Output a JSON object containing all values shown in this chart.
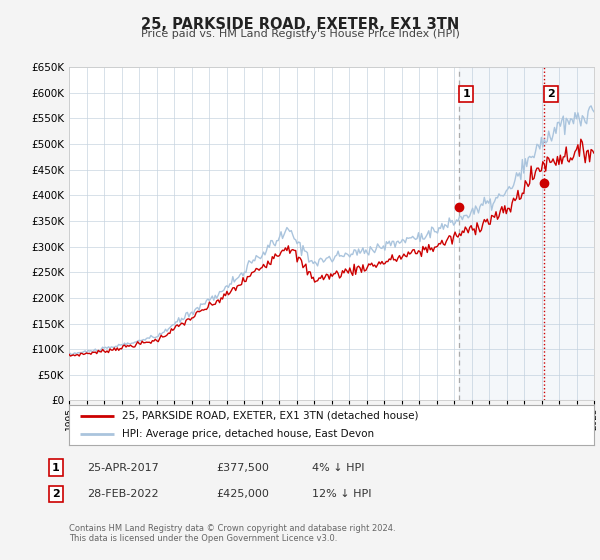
{
  "title": "25, PARKSIDE ROAD, EXETER, EX1 3TN",
  "subtitle": "Price paid vs. HM Land Registry's House Price Index (HPI)",
  "legend_line1": "25, PARKSIDE ROAD, EXETER, EX1 3TN (detached house)",
  "legend_line2": "HPI: Average price, detached house, East Devon",
  "sale1_date": "25-APR-2017",
  "sale1_price": "£377,500",
  "sale1_hpi": "4% ↓ HPI",
  "sale2_date": "28-FEB-2022",
  "sale2_price": "£425,000",
  "sale2_hpi": "12% ↓ HPI",
  "footnote": "Contains HM Land Registry data © Crown copyright and database right 2024.\nThis data is licensed under the Open Government Licence v3.0.",
  "red_color": "#cc0000",
  "blue_color": "#aac4dd",
  "sale1_x": 2017.31,
  "sale1_y": 377500,
  "sale2_x": 2022.16,
  "sale2_y": 425000,
  "vline1_x": 2017.31,
  "vline2_x": 2022.16,
  "ylim": [
    0,
    650000
  ],
  "xlim": [
    1995,
    2025
  ],
  "plot_bg": "#ffffff",
  "fig_bg": "#f4f4f4",
  "grid_color": "#c8d4e0"
}
